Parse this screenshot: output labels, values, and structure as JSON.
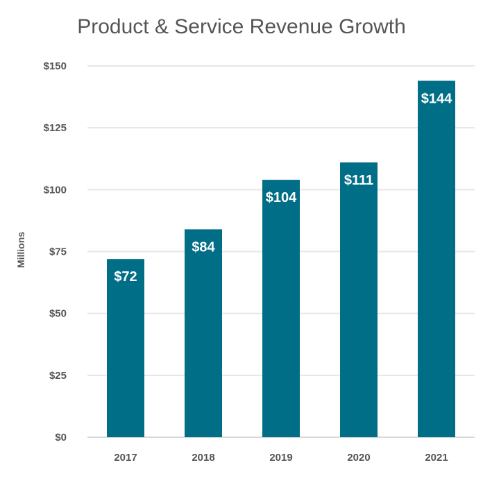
{
  "chart_data": {
    "type": "bar",
    "title": "Product & Service Revenue Growth",
    "xlabel": "",
    "ylabel": "Millions",
    "categories": [
      "2017",
      "2018",
      "2019",
      "2020",
      "2021"
    ],
    "values": [
      72,
      84,
      104,
      111,
      144
    ],
    "data_labels": [
      "$72",
      "$84",
      "$104",
      "$111",
      "$144"
    ],
    "ylim": [
      0,
      150
    ],
    "yticks": [
      0,
      25,
      50,
      75,
      100,
      125,
      150
    ],
    "ytick_labels": [
      "$0",
      "$25",
      "$50",
      "$75",
      "$100",
      "$125",
      "$150"
    ],
    "grid": true,
    "bar_color": "#006e87"
  }
}
